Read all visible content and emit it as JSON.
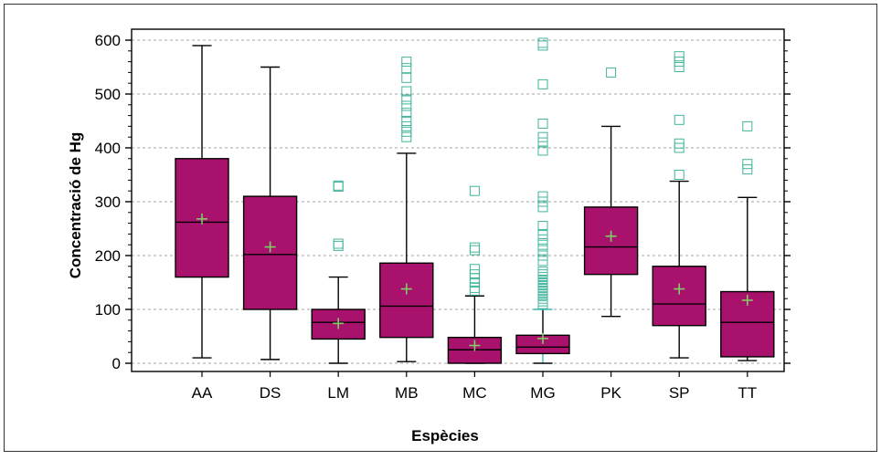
{
  "chart_data": {
    "type": "boxplot",
    "xlabel": "Espècies",
    "ylabel": "Concentració de Hg",
    "ylim": [
      0,
      600
    ],
    "yticks": [
      0,
      100,
      200,
      300,
      400,
      500,
      600
    ],
    "grid": "horizontal dashed",
    "categories": [
      "AA",
      "DS",
      "LM",
      "MB",
      "MC",
      "MG",
      "PK",
      "SP",
      "TT"
    ],
    "boxes": [
      {
        "category": "AA",
        "min": 10,
        "q1": 160,
        "median": 262,
        "q3": 380,
        "max": 590,
        "mean": 268,
        "outliers": []
      },
      {
        "category": "DS",
        "min": 7,
        "q1": 100,
        "median": 202,
        "q3": 310,
        "max": 550,
        "mean": 216,
        "outliers": []
      },
      {
        "category": "LM",
        "min": 0,
        "q1": 45,
        "median": 76,
        "q3": 100,
        "max": 160,
        "mean": 74,
        "outliers": [
          218,
          222,
          328,
          330
        ]
      },
      {
        "category": "MB",
        "min": 3,
        "q1": 48,
        "median": 106,
        "q3": 186,
        "max": 390,
        "mean": 138,
        "outliers": [
          420,
          430,
          440,
          450,
          465,
          478,
          490,
          505,
          530,
          548,
          560
        ]
      },
      {
        "category": "MC",
        "min": 0,
        "q1": 0,
        "median": 25,
        "q3": 48,
        "max": 125,
        "mean": 33,
        "outliers": [
          135,
          140,
          150,
          158,
          165,
          175,
          210,
          215,
          320
        ]
      },
      {
        "category": "MG",
        "min": 0,
        "q1": 18,
        "median": 30,
        "q3": 52,
        "max": 100,
        "mean": 46,
        "outliers": [
          110,
          115,
          120,
          125,
          130,
          135,
          140,
          145,
          150,
          155,
          160,
          165,
          170,
          190,
          200,
          210,
          220,
          230,
          240,
          255,
          290,
          300,
          310,
          395,
          410,
          420,
          445,
          518,
          590,
          595
        ]
      },
      {
        "category": "PK",
        "min": 87,
        "q1": 165,
        "median": 216,
        "q3": 290,
        "max": 440,
        "mean": 236,
        "outliers": [
          540
        ]
      },
      {
        "category": "SP",
        "min": 10,
        "q1": 70,
        "median": 110,
        "q3": 180,
        "max": 338,
        "mean": 138,
        "outliers": [
          350,
          400,
          408,
          452,
          550,
          560,
          570
        ]
      },
      {
        "category": "TT",
        "min": 5,
        "q1": 12,
        "median": 76,
        "q3": 133,
        "max": 308,
        "mean": 117,
        "outliers": [
          360,
          370,
          440
        ]
      }
    ],
    "colors": {
      "box_fill": "#a8116c",
      "box_stroke": "#000000",
      "whisker_mg": "#3fb8b3",
      "mean_marker": "#7fcf66",
      "outlier_stroke": "#42b49c",
      "grid": "#a6a6a6"
    }
  }
}
